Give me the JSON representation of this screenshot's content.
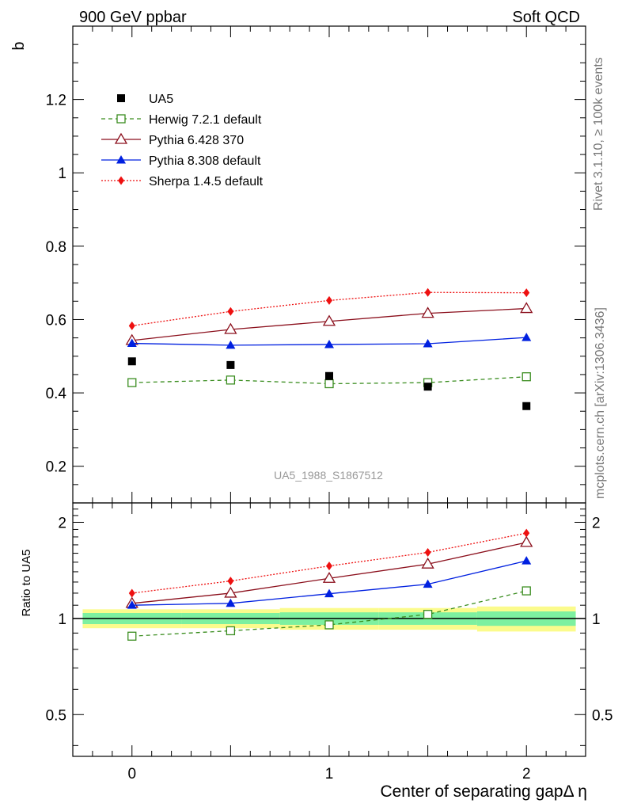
{
  "header": {
    "left": "900 GeV ppbar",
    "right": "Soft QCD",
    "rivet": "Rivet 3.1.10, ≥ 100k events",
    "mcplots": "mcplots.cern.ch [arXiv:1306.3436]",
    "watermark": "UA5_1988_S1867512"
  },
  "chart_data": {
    "type": "scatter",
    "xlabel": "Center of separating gapΔ η",
    "ylabel": "b",
    "ratio_ylabel": "Ratio to UA5",
    "xlim": [
      -0.3,
      2.3
    ],
    "ylim": [
      0.1,
      1.4
    ],
    "ratio_ylim": [
      0.37,
      2.3
    ],
    "xticks": [
      "0",
      "1",
      "2"
    ],
    "yticks": [
      "0.2",
      "0.4",
      "0.6",
      "0.8",
      "1",
      "1.2"
    ],
    "ratio_yticks": [
      "0.5",
      "1",
      "2"
    ],
    "ratio_yticks_right": [
      "0.5",
      "1",
      "2"
    ],
    "x": [
      0,
      0.5,
      1,
      1.5,
      2
    ],
    "data": {
      "name": "UA5",
      "values": [
        0.486,
        0.476,
        0.446,
        0.417,
        0.364
      ],
      "color": "#000000"
    },
    "series": [
      {
        "name": "Herwig 7.2.1 default",
        "values": [
          0.428,
          0.435,
          0.425,
          0.428,
          0.444
        ],
        "ratio": [
          0.88,
          0.915,
          0.955,
          1.03,
          1.22
        ],
        "color": "#3a8d1f",
        "marker": "open-square",
        "dash": "5,4"
      },
      {
        "name": "Pythia 6.428 370",
        "values": [
          0.543,
          0.573,
          0.595,
          0.617,
          0.63
        ],
        "ratio": [
          1.115,
          1.2,
          1.335,
          1.48,
          1.73
        ],
        "color": "#8b0f1c",
        "marker": "open-triangle",
        "dash": ""
      },
      {
        "name": "Pythia 8.308 default",
        "values": [
          0.535,
          0.53,
          0.532,
          0.534,
          0.551
        ],
        "ratio": [
          1.1,
          1.115,
          1.195,
          1.28,
          1.515
        ],
        "color": "#0020e0",
        "marker": "triangle",
        "dash": ""
      },
      {
        "name": "Sherpa 1.4.5 default",
        "values": [
          0.583,
          0.622,
          0.652,
          0.674,
          0.673
        ],
        "ratio": [
          1.2,
          1.31,
          1.46,
          1.61,
          1.85
        ],
        "color": "#ee1010",
        "marker": "diamond",
        "dash": "2,2"
      }
    ],
    "uncertainty_bands": {
      "inner_color": "#7df0a0",
      "outer_color": "#fbfb8c"
    }
  }
}
